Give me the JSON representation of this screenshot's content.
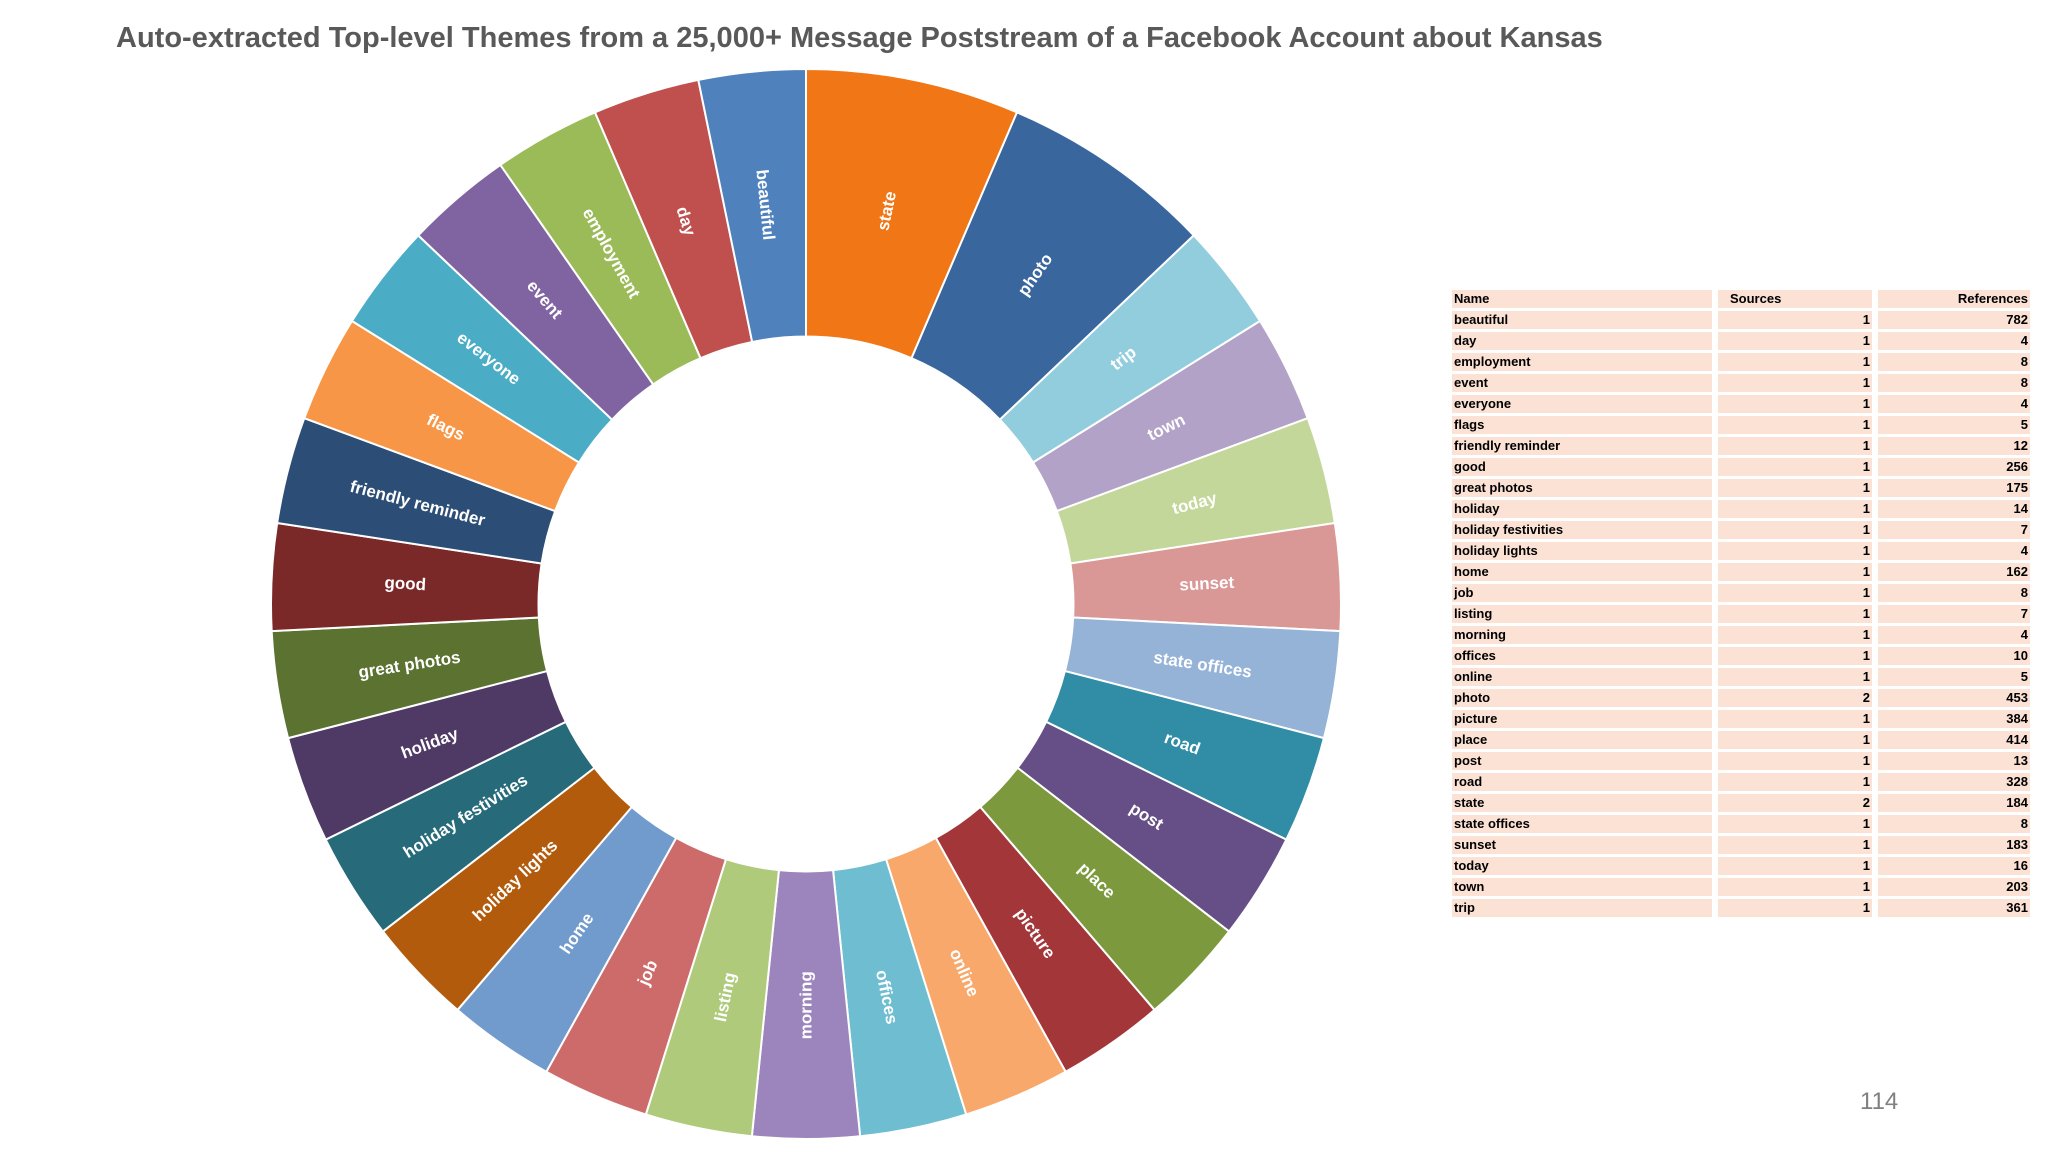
{
  "title": "Auto-extracted Top-level Themes from a 25,000+ Message Poststream of a Facebook Account about Kansas",
  "page_number": "114",
  "chart_data": {
    "type": "pie",
    "subtype": "donut",
    "hole_ratio": 0.5,
    "categories": [
      "state",
      "photo",
      "trip",
      "town",
      "today",
      "sunset",
      "state offices",
      "road",
      "post",
      "place",
      "picture",
      "online",
      "offices",
      "morning",
      "listing",
      "job",
      "home",
      "holiday lights",
      "holiday festivities",
      "holiday",
      "great photos",
      "good",
      "friendly reminder",
      "flags",
      "everyone",
      "event",
      "employment",
      "day",
      "beautiful"
    ],
    "values": [
      2,
      2,
      1,
      1,
      1,
      1,
      1,
      1,
      1,
      1,
      1,
      1,
      1,
      1,
      1,
      1,
      1,
      1,
      1,
      1,
      1,
      1,
      1,
      1,
      1,
      1,
      1,
      1,
      1
    ],
    "colors": [
      "#f07616",
      "#3a669e",
      "#92cddd",
      "#b3a2c7",
      "#c4d79b",
      "#d99795",
      "#95b3d7",
      "#318ca6",
      "#664f86",
      "#7c9a3d",
      "#a33638",
      "#f8a86b",
      "#6ebdd0",
      "#9c84bc",
      "#afca7a",
      "#cd6b6a",
      "#729bcd",
      "#b35b0c",
      "#276b7a",
      "#4f3a66",
      "#5b7231",
      "#7a2828",
      "#2c4d75",
      "#f79646",
      "#4bacc6",
      "#8064a2",
      "#9bbb59",
      "#c0504d",
      "#4f81bd"
    ],
    "label_color": "#ffffff",
    "slice_border": "#ffffff"
  },
  "table": {
    "headers": [
      "Name",
      "Sources",
      "References"
    ],
    "rows": [
      [
        "beautiful",
        "1",
        "782"
      ],
      [
        "day",
        "1",
        "4"
      ],
      [
        "employment",
        "1",
        "8"
      ],
      [
        "event",
        "1",
        "8"
      ],
      [
        "everyone",
        "1",
        "4"
      ],
      [
        "flags",
        "1",
        "5"
      ],
      [
        "friendly reminder",
        "1",
        "12"
      ],
      [
        "good",
        "1",
        "256"
      ],
      [
        "great photos",
        "1",
        "175"
      ],
      [
        "holiday",
        "1",
        "14"
      ],
      [
        "holiday festivities",
        "1",
        "7"
      ],
      [
        "holiday lights",
        "1",
        "4"
      ],
      [
        "home",
        "1",
        "162"
      ],
      [
        "job",
        "1",
        "8"
      ],
      [
        "listing",
        "1",
        "7"
      ],
      [
        "morning",
        "1",
        "4"
      ],
      [
        "offices",
        "1",
        "10"
      ],
      [
        "online",
        "1",
        "5"
      ],
      [
        "photo",
        "2",
        "453"
      ],
      [
        "picture",
        "1",
        "384"
      ],
      [
        "place",
        "1",
        "414"
      ],
      [
        "post",
        "1",
        "13"
      ],
      [
        "road",
        "1",
        "328"
      ],
      [
        "state",
        "2",
        "184"
      ],
      [
        "state offices",
        "1",
        "8"
      ],
      [
        "sunset",
        "1",
        "183"
      ],
      [
        "today",
        "1",
        "16"
      ],
      [
        "town",
        "1",
        "203"
      ],
      [
        "trip",
        "1",
        "361"
      ]
    ],
    "header_bg": "#fbe2d5"
  }
}
